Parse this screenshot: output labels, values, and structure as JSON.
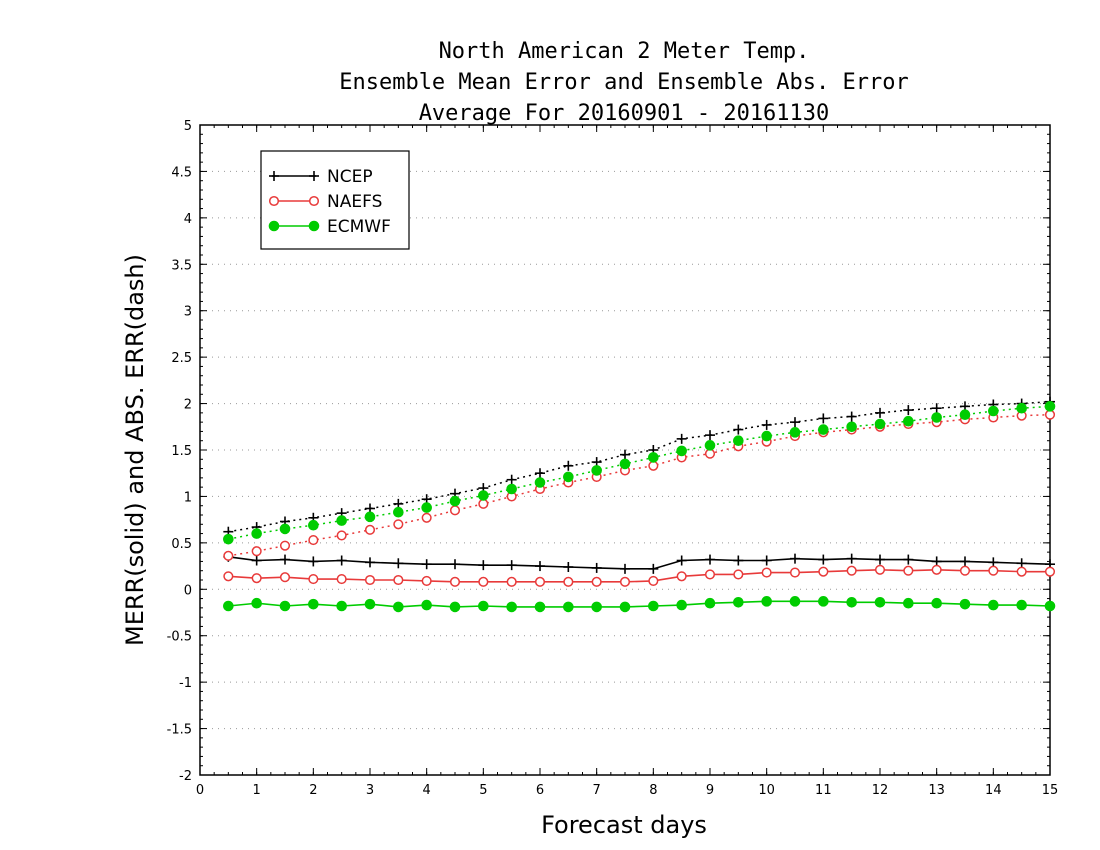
{
  "chart_data": {
    "type": "line",
    "title": [
      "North American 2 Meter Temp.",
      "Ensemble Mean Error and Ensemble Abs. Error",
      "Average For 20160901 - 20161130"
    ],
    "xlabel": "Forecast days",
    "ylabel": "MERR(solid) and ABS. ERR(dash)",
    "xlim": [
      0,
      15
    ],
    "ylim": [
      -2,
      5
    ],
    "xticks": [
      0,
      1,
      2,
      3,
      4,
      5,
      6,
      7,
      8,
      9,
      10,
      11,
      12,
      13,
      14,
      15
    ],
    "yticks": [
      -2,
      -1.5,
      -1,
      -0.5,
      0,
      0.5,
      1,
      1.5,
      2,
      2.5,
      3,
      3.5,
      4,
      4.5,
      5
    ],
    "ytick_labels": [
      "-2",
      "-1.5",
      "-1",
      "-0.5",
      "0",
      "0.5",
      "1",
      "1.5",
      "2",
      "2.5",
      "3",
      "3.5",
      "4",
      "4.5",
      "5"
    ],
    "grid": "horizontal dotted",
    "legend": "top-left",
    "x": [
      0.5,
      1,
      1.5,
      2,
      2.5,
      3,
      3.5,
      4,
      4.5,
      5,
      5.5,
      6,
      6.5,
      7,
      7.5,
      8,
      8.5,
      9,
      9.5,
      10,
      10.5,
      11,
      11.5,
      12,
      12.5,
      13,
      13.5,
      14,
      14.5,
      15
    ],
    "series": [
      {
        "name": "NCEP",
        "marker": "plus",
        "color": "#000000",
        "merr": [
          0.35,
          0.31,
          0.32,
          0.3,
          0.31,
          0.29,
          0.28,
          0.27,
          0.27,
          0.26,
          0.26,
          0.25,
          0.24,
          0.23,
          0.22,
          0.22,
          0.31,
          0.32,
          0.31,
          0.31,
          0.33,
          0.32,
          0.33,
          0.32,
          0.32,
          0.3,
          0.3,
          0.29,
          0.28,
          0.27
        ],
        "abs_err": [
          0.62,
          0.67,
          0.73,
          0.77,
          0.82,
          0.87,
          0.92,
          0.97,
          1.03,
          1.09,
          1.18,
          1.25,
          1.33,
          1.37,
          1.45,
          1.5,
          1.62,
          1.66,
          1.72,
          1.77,
          1.8,
          1.84,
          1.86,
          1.9,
          1.93,
          1.95,
          1.97,
          1.99,
          2.0,
          2.02
        ]
      },
      {
        "name": "NAEFS",
        "marker": "open-circle",
        "color": "#e83a3a",
        "merr": [
          0.14,
          0.12,
          0.13,
          0.11,
          0.11,
          0.1,
          0.1,
          0.09,
          0.08,
          0.08,
          0.08,
          0.08,
          0.08,
          0.08,
          0.08,
          0.09,
          0.14,
          0.16,
          0.16,
          0.18,
          0.18,
          0.19,
          0.2,
          0.21,
          0.2,
          0.21,
          0.2,
          0.2,
          0.19,
          0.19
        ],
        "abs_err": [
          0.36,
          0.41,
          0.47,
          0.53,
          0.58,
          0.64,
          0.7,
          0.77,
          0.85,
          0.92,
          1.0,
          1.08,
          1.15,
          1.21,
          1.28,
          1.33,
          1.42,
          1.46,
          1.54,
          1.59,
          1.65,
          1.69,
          1.72,
          1.75,
          1.78,
          1.8,
          1.83,
          1.85,
          1.87,
          1.88
        ]
      },
      {
        "name": "ECMWF",
        "marker": "filled-circle",
        "color": "#00cc00",
        "merr": [
          -0.18,
          -0.15,
          -0.18,
          -0.16,
          -0.18,
          -0.16,
          -0.19,
          -0.17,
          -0.19,
          -0.18,
          -0.19,
          -0.19,
          -0.19,
          -0.19,
          -0.19,
          -0.18,
          -0.17,
          -0.15,
          -0.14,
          -0.13,
          -0.13,
          -0.13,
          -0.14,
          -0.14,
          -0.15,
          -0.15,
          -0.16,
          -0.17,
          -0.17,
          -0.18
        ],
        "abs_err": [
          0.54,
          0.6,
          0.65,
          0.69,
          0.74,
          0.78,
          0.83,
          0.88,
          0.95,
          1.01,
          1.08,
          1.15,
          1.21,
          1.28,
          1.35,
          1.42,
          1.49,
          1.55,
          1.6,
          1.65,
          1.69,
          1.72,
          1.75,
          1.78,
          1.81,
          1.85,
          1.88,
          1.92,
          1.95,
          1.97
        ]
      }
    ]
  }
}
